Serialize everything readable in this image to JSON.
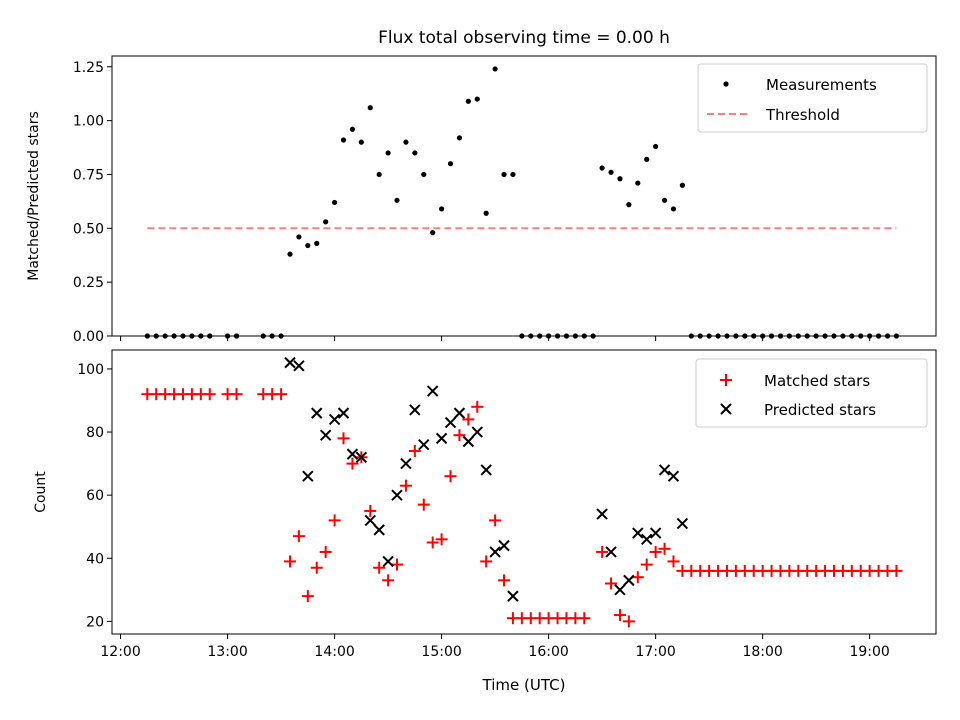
{
  "title": "Flux total observing time = 0.00 h",
  "x_axis": {
    "label": "Time (UTC)",
    "range_hours": [
      11.92,
      19.62
    ],
    "ticks": [
      12,
      13,
      14,
      15,
      16,
      17,
      18,
      19
    ],
    "tick_labels": [
      "12:00",
      "13:00",
      "14:00",
      "15:00",
      "16:00",
      "17:00",
      "18:00",
      "19:00"
    ]
  },
  "colors": {
    "measurements": "#000000",
    "threshold": "#ff7f7f",
    "matched": "#ff0000",
    "predicted": "#000000"
  },
  "chart_data": [
    {
      "type": "scatter",
      "ylabel": "Matched/Predicted stars",
      "ylim": [
        0,
        1.3
      ],
      "yticks": [
        0,
        0.25,
        0.5,
        0.75,
        1.0,
        1.25
      ],
      "ytick_labels": [
        "0.00",
        "0.25",
        "0.50",
        "0.75",
        "1.00",
        "1.25"
      ],
      "legend": {
        "placement": "upper right",
        "entries": [
          "Measurements",
          "Threshold"
        ]
      },
      "series": [
        {
          "name": "Measurements",
          "points": [
            [
              "12:15",
              0
            ],
            [
              "12:20",
              0
            ],
            [
              "12:25",
              0
            ],
            [
              "12:30",
              0
            ],
            [
              "12:35",
              0
            ],
            [
              "12:40",
              0
            ],
            [
              "12:45",
              0
            ],
            [
              "12:50",
              0
            ],
            [
              "13:00",
              0
            ],
            [
              "13:05",
              0
            ],
            [
              "13:20",
              0
            ],
            [
              "13:25",
              0
            ],
            [
              "13:30",
              0
            ],
            [
              "13:35",
              0.38
            ],
            [
              "13:40",
              0.46
            ],
            [
              "13:45",
              0.42
            ],
            [
              "13:50",
              0.43
            ],
            [
              "13:55",
              0.53
            ],
            [
              "14:00",
              0.62
            ],
            [
              "14:05",
              0.91
            ],
            [
              "14:10",
              0.96
            ],
            [
              "14:15",
              0.9
            ],
            [
              "14:20",
              1.06
            ],
            [
              "14:25",
              0.75
            ],
            [
              "14:30",
              0.85
            ],
            [
              "14:35",
              0.63
            ],
            [
              "14:40",
              0.9
            ],
            [
              "14:45",
              0.85
            ],
            [
              "14:50",
              0.75
            ],
            [
              "14:55",
              0.48
            ],
            [
              "15:00",
              0.59
            ],
            [
              "15:05",
              0.8
            ],
            [
              "15:10",
              0.92
            ],
            [
              "15:15",
              1.09
            ],
            [
              "15:20",
              1.1
            ],
            [
              "15:25",
              0.57
            ],
            [
              "15:30",
              1.24
            ],
            [
              "15:35",
              0.75
            ],
            [
              "15:40",
              0.75
            ],
            [
              "15:45",
              0
            ],
            [
              "15:50",
              0
            ],
            [
              "15:55",
              0
            ],
            [
              "16:00",
              0
            ],
            [
              "16:05",
              0
            ],
            [
              "16:10",
              0
            ],
            [
              "16:15",
              0
            ],
            [
              "16:20",
              0
            ],
            [
              "16:25",
              0
            ],
            [
              "16:30",
              0.78
            ],
            [
              "16:35",
              0.76
            ],
            [
              "16:40",
              0.73
            ],
            [
              "16:45",
              0.61
            ],
            [
              "16:50",
              0.71
            ],
            [
              "16:55",
              0.82
            ],
            [
              "17:00",
              0.88
            ],
            [
              "17:05",
              0.63
            ],
            [
              "17:10",
              0.59
            ],
            [
              "17:15",
              0.7
            ],
            [
              "17:20",
              0
            ],
            [
              "17:25",
              0
            ],
            [
              "17:30",
              0
            ],
            [
              "17:35",
              0
            ],
            [
              "17:40",
              0
            ],
            [
              "17:45",
              0
            ],
            [
              "17:50",
              0
            ],
            [
              "17:55",
              0
            ],
            [
              "18:00",
              0
            ],
            [
              "18:05",
              0
            ],
            [
              "18:10",
              0
            ],
            [
              "18:15",
              0
            ],
            [
              "18:20",
              0
            ],
            [
              "18:25",
              0
            ],
            [
              "18:30",
              0
            ],
            [
              "18:35",
              0
            ],
            [
              "18:40",
              0
            ],
            [
              "18:45",
              0
            ],
            [
              "18:50",
              0
            ],
            [
              "18:55",
              0
            ],
            [
              "19:00",
              0
            ],
            [
              "19:05",
              0
            ],
            [
              "19:10",
              0
            ],
            [
              "19:15",
              0
            ]
          ]
        },
        {
          "name": "Threshold",
          "line": [
            [
              "12:15",
              0.5
            ],
            [
              "19:15",
              0.5
            ]
          ]
        }
      ]
    },
    {
      "type": "scatter",
      "ylabel": "Count",
      "ylim": [
        16,
        106
      ],
      "yticks": [
        20,
        40,
        60,
        80,
        100
      ],
      "ytick_labels": [
        "20",
        "40",
        "60",
        "80",
        "100"
      ],
      "legend": {
        "placement": "upper right",
        "entries": [
          "Matched stars",
          "Predicted stars"
        ]
      },
      "series": [
        {
          "name": "Matched stars",
          "points": [
            [
              "12:15",
              92
            ],
            [
              "12:20",
              92
            ],
            [
              "12:25",
              92
            ],
            [
              "12:30",
              92
            ],
            [
              "12:35",
              92
            ],
            [
              "12:40",
              92
            ],
            [
              "12:45",
              92
            ],
            [
              "12:50",
              92
            ],
            [
              "13:00",
              92
            ],
            [
              "13:05",
              92
            ],
            [
              "13:20",
              92
            ],
            [
              "13:25",
              92
            ],
            [
              "13:30",
              92
            ],
            [
              "13:35",
              39
            ],
            [
              "13:40",
              47
            ],
            [
              "13:45",
              28
            ],
            [
              "13:50",
              37
            ],
            [
              "13:55",
              42
            ],
            [
              "14:00",
              52
            ],
            [
              "14:05",
              78
            ],
            [
              "14:10",
              70
            ],
            [
              "14:15",
              72
            ],
            [
              "14:20",
              55
            ],
            [
              "14:25",
              37
            ],
            [
              "14:30",
              33
            ],
            [
              "14:35",
              38
            ],
            [
              "14:40",
              63
            ],
            [
              "14:45",
              74
            ],
            [
              "14:50",
              57
            ],
            [
              "14:55",
              45
            ],
            [
              "15:00",
              46
            ],
            [
              "15:05",
              66
            ],
            [
              "15:10",
              79
            ],
            [
              "15:15",
              84
            ],
            [
              "15:20",
              88
            ],
            [
              "15:25",
              39
            ],
            [
              "15:30",
              52
            ],
            [
              "15:35",
              33
            ],
            [
              "15:40",
              21
            ],
            [
              "15:45",
              21
            ],
            [
              "15:50",
              21
            ],
            [
              "15:55",
              21
            ],
            [
              "16:00",
              21
            ],
            [
              "16:05",
              21
            ],
            [
              "16:10",
              21
            ],
            [
              "16:15",
              21
            ],
            [
              "16:20",
              21
            ],
            [
              "16:30",
              42
            ],
            [
              "16:35",
              32
            ],
            [
              "16:40",
              22
            ],
            [
              "16:45",
              20
            ],
            [
              "16:50",
              34
            ],
            [
              "16:55",
              38
            ],
            [
              "17:00",
              42
            ],
            [
              "17:05",
              43
            ],
            [
              "17:10",
              39
            ],
            [
              "17:15",
              36
            ],
            [
              "17:20",
              36
            ],
            [
              "17:25",
              36
            ],
            [
              "17:30",
              36
            ],
            [
              "17:35",
              36
            ],
            [
              "17:40",
              36
            ],
            [
              "17:45",
              36
            ],
            [
              "17:50",
              36
            ],
            [
              "17:55",
              36
            ],
            [
              "18:00",
              36
            ],
            [
              "18:05",
              36
            ],
            [
              "18:10",
              36
            ],
            [
              "18:15",
              36
            ],
            [
              "18:20",
              36
            ],
            [
              "18:25",
              36
            ],
            [
              "18:30",
              36
            ],
            [
              "18:35",
              36
            ],
            [
              "18:40",
              36
            ],
            [
              "18:45",
              36
            ],
            [
              "18:50",
              36
            ],
            [
              "18:55",
              36
            ],
            [
              "19:00",
              36
            ],
            [
              "19:05",
              36
            ],
            [
              "19:10",
              36
            ],
            [
              "19:15",
              36
            ]
          ]
        },
        {
          "name": "Predicted stars",
          "points": [
            [
              "13:35",
              102
            ],
            [
              "13:40",
              101
            ],
            [
              "13:45",
              66
            ],
            [
              "13:50",
              86
            ],
            [
              "13:55",
              79
            ],
            [
              "14:00",
              84
            ],
            [
              "14:05",
              86
            ],
            [
              "14:10",
              73
            ],
            [
              "14:15",
              72
            ],
            [
              "14:20",
              52
            ],
            [
              "14:25",
              49
            ],
            [
              "14:30",
              39
            ],
            [
              "14:35",
              60
            ],
            [
              "14:40",
              70
            ],
            [
              "14:45",
              87
            ],
            [
              "14:50",
              76
            ],
            [
              "14:55",
              93
            ],
            [
              "15:00",
              78
            ],
            [
              "15:05",
              83
            ],
            [
              "15:10",
              86
            ],
            [
              "15:15",
              77
            ],
            [
              "15:20",
              80
            ],
            [
              "15:25",
              68
            ],
            [
              "15:30",
              42
            ],
            [
              "15:35",
              44
            ],
            [
              "15:40",
              28
            ],
            [
              "16:30",
              54
            ],
            [
              "16:35",
              42
            ],
            [
              "16:40",
              30
            ],
            [
              "16:45",
              33
            ],
            [
              "16:50",
              48
            ],
            [
              "16:55",
              46
            ],
            [
              "17:00",
              48
            ],
            [
              "17:05",
              68
            ],
            [
              "17:10",
              66
            ],
            [
              "17:15",
              51
            ]
          ]
        }
      ]
    }
  ]
}
